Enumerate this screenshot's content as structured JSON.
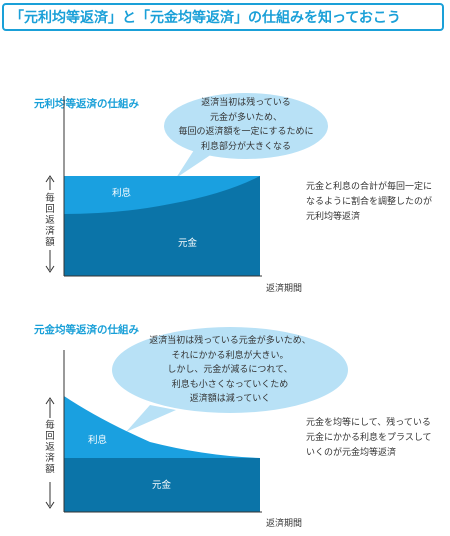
{
  "header": {
    "title": "「元利均等返済」と「元金均等返済」の仕組みを知っておこう"
  },
  "colors": {
    "accent": "#1aa0d8",
    "principal": "#0b74a8",
    "interest": "#1aa0e0",
    "bubble": "#b8e1f6",
    "axis": "#333333"
  },
  "section1": {
    "title": "元利均等返済の仕組み",
    "bubble_lines": [
      "返済当初は残っている",
      "元金が多いため、",
      "毎回の返済額を一定にするために",
      "利息部分が大きくなる"
    ],
    "interest_label": "利息",
    "principal_label": "元金",
    "y_label": "毎回返済額",
    "x_label": "返済期間",
    "side_lines": [
      "元金と利息の合計が毎回一定に",
      "なるように割合を調整したのが",
      "元利均等返済"
    ]
  },
  "section2": {
    "title": "元金均等返済の仕組み",
    "bubble_lines": [
      "返済当初は残っている元金が多いため、",
      "それにかかる利息が大きい。",
      "しかし、元金が減るにつれて、",
      "利息も小さくなっていくため",
      "返済額は減っていく"
    ],
    "interest_label": "利息",
    "principal_label": "元金",
    "y_label": "毎回返済額",
    "x_label": "返済期間",
    "side_lines": [
      "元金を均等にして、残っている",
      "元金にかかる利息をプラスして",
      "いくのが元金均等返済"
    ]
  }
}
